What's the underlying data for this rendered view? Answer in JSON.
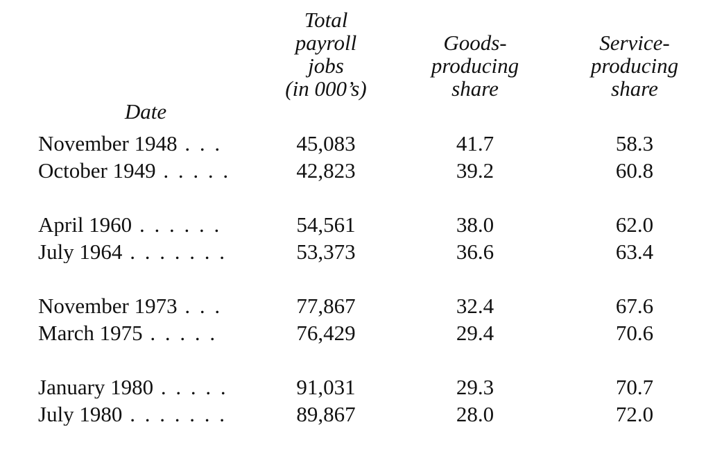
{
  "table": {
    "headers": {
      "date": [
        "Date"
      ],
      "total": [
        "Total",
        "payroll",
        "jobs",
        "(in 000’s)"
      ],
      "goods": [
        "Goods-",
        "producing",
        "share"
      ],
      "service": [
        "Service-",
        "producing",
        "share"
      ]
    },
    "rows": [
      {
        "date": "November 1948",
        "leader": " . . .",
        "total": "45,083",
        "goods": "41.7",
        "service": "58.3"
      },
      {
        "date": "October 1949",
        "leader": " . . . . .",
        "total": "42,823",
        "goods": "39.2",
        "service": "60.8"
      },
      {
        "date": "April 1960",
        "leader": "  . . . . . .",
        "total": "54,561",
        "goods": "38.0",
        "service": "62.0"
      },
      {
        "date": "July 1964",
        "leader": "  . . . . . . .",
        "total": "53,373",
        "goods": "36.6",
        "service": "63.4"
      },
      {
        "date": "November 1973",
        "leader": " . . .",
        "total": "77,867",
        "goods": "32.4",
        "service": "67.6"
      },
      {
        "date": "March 1975",
        "leader": "  . . . . .",
        "total": "76,429",
        "goods": "29.4",
        "service": "70.6"
      },
      {
        "date": "January 1980",
        "leader": " . . . . .",
        "total": "91,031",
        "goods": "29.3",
        "service": "70.7"
      },
      {
        "date": "July 1980",
        "leader": "  . . . . . . .",
        "total": "89,867",
        "goods": "28.0",
        "service": "72.0"
      }
    ]
  }
}
